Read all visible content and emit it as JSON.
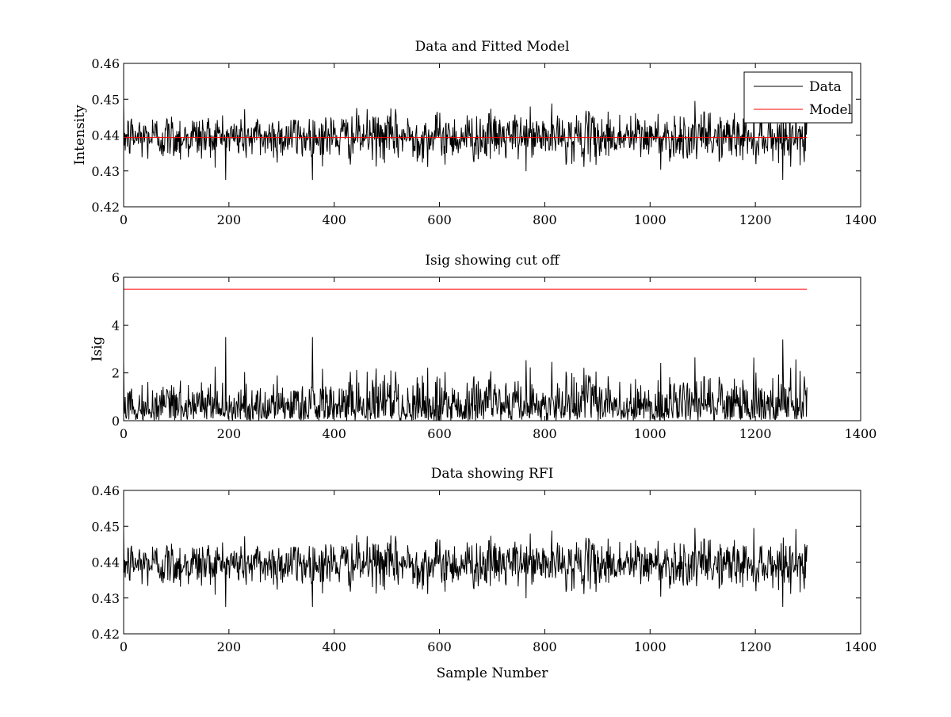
{
  "figure": {
    "background": "#ffffff"
  },
  "chart_data": [
    {
      "type": "line",
      "title": "Data and Fitted Model",
      "xlabel": "",
      "ylabel": "Intensity",
      "xlim": [
        0,
        1400
      ],
      "ylim": [
        0.42,
        0.46
      ],
      "xticks": [
        "0",
        "200",
        "400",
        "600",
        "800",
        "1000",
        "1200",
        "1400"
      ],
      "yticks": [
        "0.42",
        "0.43",
        "0.44",
        "0.45",
        "0.46"
      ],
      "grid": false,
      "legend_location": "top-right",
      "legend": [
        {
          "label": "Data",
          "color": "#000000"
        },
        {
          "label": "Model",
          "color": "#ff0000"
        }
      ],
      "series": [
        {
          "name": "Data",
          "color": "#000000",
          "kind": "noise",
          "n_samples": 1300,
          "x_start": 0,
          "x_end": 1298,
          "mean": 0.4395,
          "approx_min": 0.4275,
          "approx_max": 0.4515
        },
        {
          "name": "Model",
          "color": "#ff0000",
          "kind": "constant",
          "x": [
            0,
            1298
          ],
          "y": [
            0.4393,
            0.4393
          ]
        }
      ]
    },
    {
      "type": "line",
      "title": "Isig showing cut off",
      "xlabel": "",
      "ylabel": "Isig",
      "xlim": [
        0,
        1400
      ],
      "ylim": [
        0,
        6
      ],
      "xticks": [
        "0",
        "200",
        "400",
        "600",
        "800",
        "1000",
        "1200",
        "1400"
      ],
      "yticks": [
        "0",
        "2",
        "4",
        "6"
      ],
      "grid": false,
      "series": [
        {
          "color": "#000000",
          "kind": "noise",
          "n_samples": 1300,
          "x_start": 0,
          "x_end": 1298,
          "mean": 0.8,
          "approx_min": 0,
          "approx_max": 3.5
        },
        {
          "color": "#ff0000",
          "kind": "constant",
          "x": [
            0,
            1298
          ],
          "y": [
            5.5,
            5.5
          ]
        }
      ]
    },
    {
      "type": "line",
      "title": "Data showing RFI",
      "xlabel": "Sample Number",
      "ylabel": "",
      "xlim": [
        0,
        1400
      ],
      "ylim": [
        0.42,
        0.46
      ],
      "xticks": [
        "0",
        "200",
        "400",
        "600",
        "800",
        "1000",
        "1200",
        "1400"
      ],
      "yticks": [
        "0.42",
        "0.43",
        "0.44",
        "0.45",
        "0.46"
      ],
      "grid": false,
      "series": [
        {
          "color": "#000000",
          "kind": "noise",
          "n_samples": 1300,
          "x_start": 0,
          "x_end": 1298,
          "mean": 0.4395,
          "approx_min": 0.4275,
          "approx_max": 0.4515
        }
      ]
    }
  ]
}
